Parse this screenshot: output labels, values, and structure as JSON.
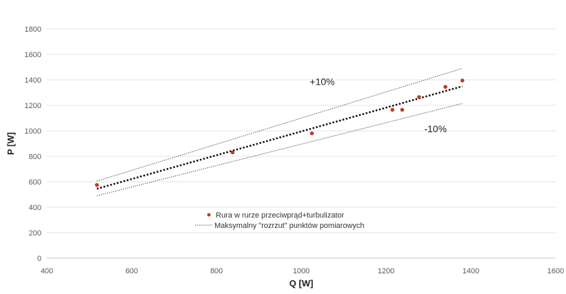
{
  "chart_data": {
    "type": "scatter",
    "xlabel": "Q [W]",
    "ylabel": "P [W]",
    "xlim": [
      400,
      1600
    ],
    "ylim": [
      0,
      1800
    ],
    "xticks": [
      400,
      600,
      800,
      1000,
      1200,
      1400,
      1600
    ],
    "yticks": [
      0,
      200,
      400,
      600,
      800,
      1000,
      1200,
      1400,
      1600,
      1800
    ],
    "grid": "horizontal",
    "legend_position": "bottom-center",
    "series": [
      {
        "name": "Rura w rurze przeciwprąd+turbulizator",
        "style": "markers",
        "color": "#c0392b",
        "points": [
          {
            "x": 518,
            "y": 575
          },
          {
            "x": 838,
            "y": 830
          },
          {
            "x": 1025,
            "y": 980
          },
          {
            "x": 1215,
            "y": 1165
          },
          {
            "x": 1238,
            "y": 1165
          },
          {
            "x": 1278,
            "y": 1265
          },
          {
            "x": 1340,
            "y": 1345
          },
          {
            "x": 1380,
            "y": 1395
          }
        ]
      },
      {
        "name": "Maksymalny  \"rozrzut\" punktów pomiarowych",
        "style": "dotted-line",
        "color": "#555555",
        "lines": [
          {
            "x": [
              518,
              1380
            ],
            "y": [
              605,
              1490
            ]
          },
          {
            "x": [
              518,
              1380
            ],
            "y": [
              490,
              1215
            ]
          }
        ]
      },
      {
        "name": "",
        "style": "trendline",
        "color": "#111111",
        "x": [
          518,
          1380
        ],
        "y": [
          545,
          1350
        ]
      }
    ],
    "annotations": [
      {
        "text": "+10%",
        "x": 1020,
        "y": 1360
      },
      {
        "text": "-10%",
        "x": 1290,
        "y": 990
      }
    ]
  }
}
